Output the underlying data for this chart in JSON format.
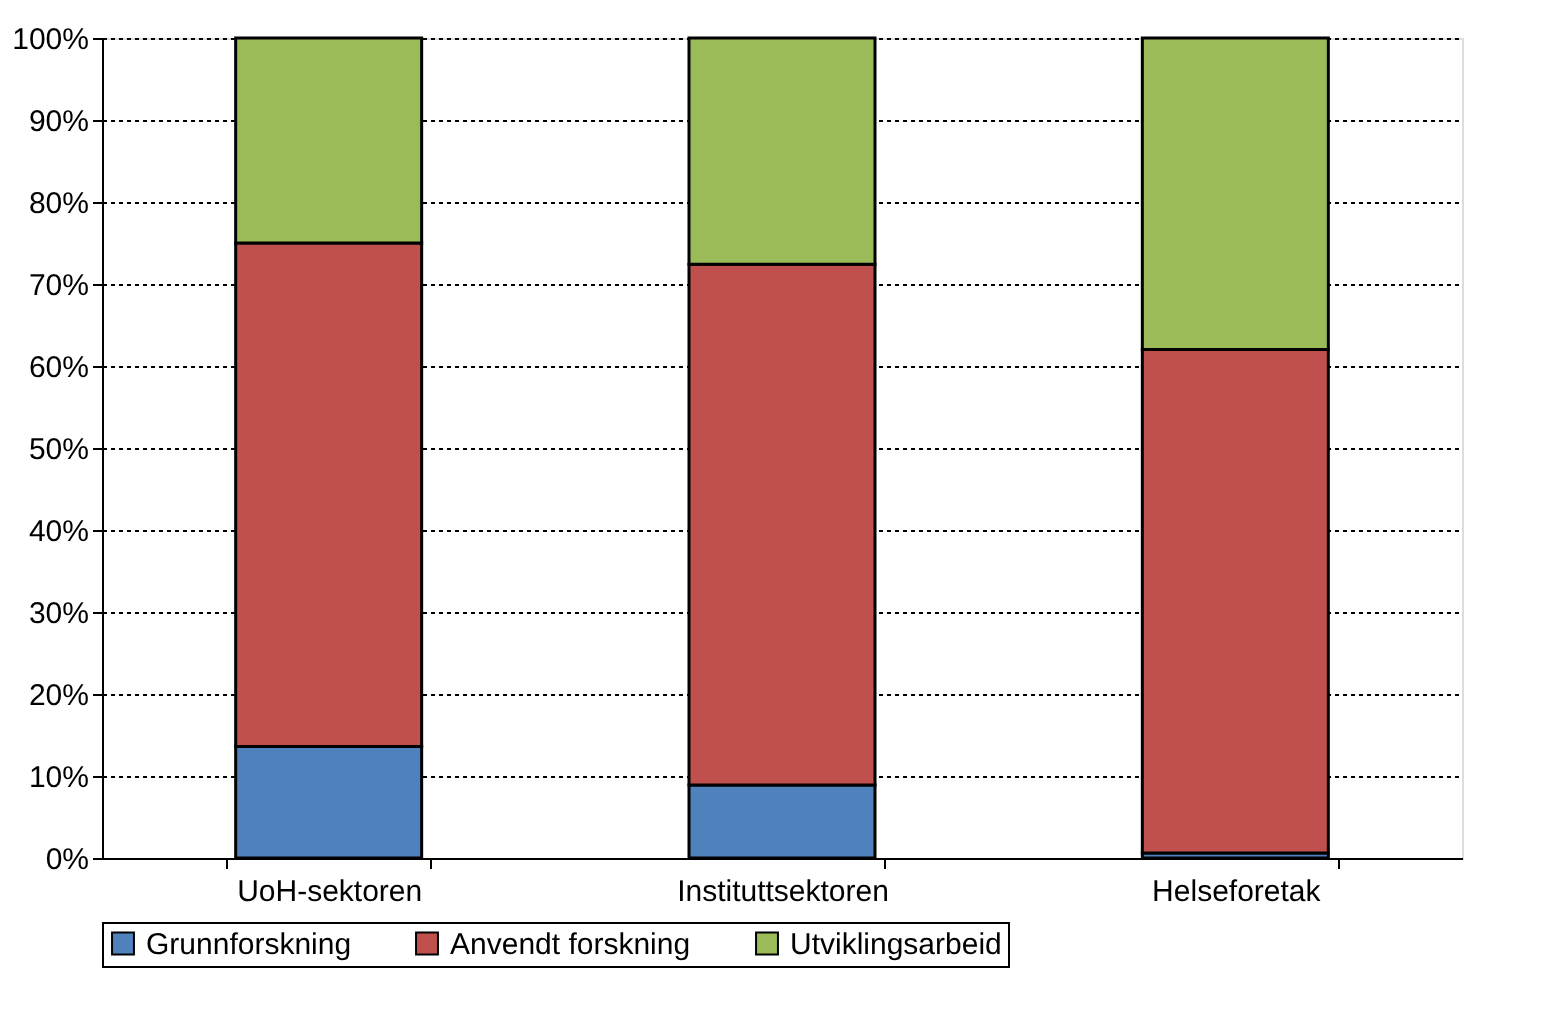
{
  "chart_data": {
    "type": "bar",
    "stacked": true,
    "categories": [
      "UoH-sektoren",
      "Instituttsektoren",
      "Helseforetak"
    ],
    "series": [
      {
        "name": "Grunnforskning",
        "color": "#4f81bd",
        "values": [
          13.6,
          8.9,
          0.6
        ]
      },
      {
        "name": "Anvendt forskning",
        "color": "#c0504d",
        "values": [
          61.4,
          63.5,
          61.4
        ]
      },
      {
        "name": "Utviklingsarbeid",
        "color": "#9bbb59",
        "values": [
          25.0,
          27.6,
          38.0
        ]
      }
    ],
    "ylim": [
      0,
      100
    ],
    "yticks": [
      {
        "value": 0,
        "label": "0%"
      },
      {
        "value": 10,
        "label": "10%"
      },
      {
        "value": 20,
        "label": "20%"
      },
      {
        "value": 30,
        "label": "30%"
      },
      {
        "value": 40,
        "label": "40%"
      },
      {
        "value": 50,
        "label": "50%"
      },
      {
        "value": 60,
        "label": "60%"
      },
      {
        "value": 70,
        "label": "70%"
      },
      {
        "value": 80,
        "label": "80%"
      },
      {
        "value": 90,
        "label": "90%"
      },
      {
        "value": 100,
        "label": "100%"
      }
    ],
    "grid": "y",
    "legend": "bottom"
  }
}
